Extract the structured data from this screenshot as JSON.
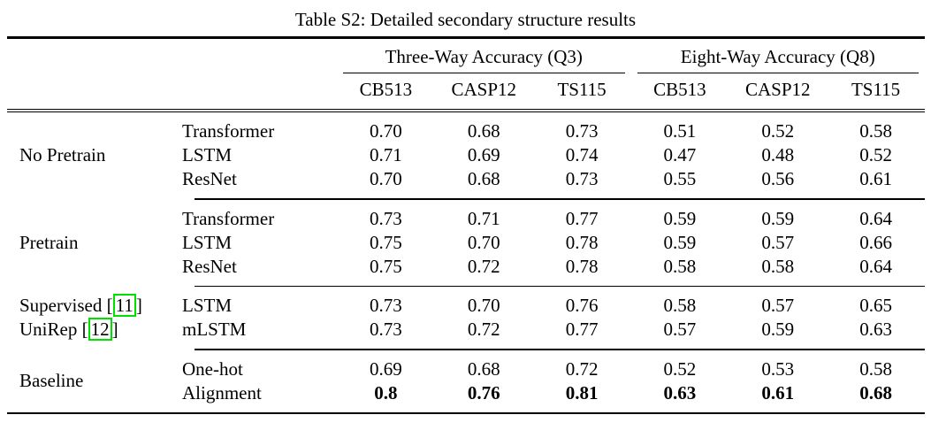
{
  "title": "Table S2: Detailed secondary structure results",
  "colors": {
    "citation_box": "#00e000"
  },
  "table": {
    "group_headers": [
      {
        "label": "Three-Way Accuracy (Q3)"
      },
      {
        "label": "Eight-Way Accuracy (Q8)"
      }
    ],
    "col_headers": [
      "CB513",
      "CASP12",
      "TS115",
      "CB513",
      "CASP12",
      "TS115"
    ],
    "sections": [
      {
        "group": "No Pretrain",
        "rows": [
          {
            "method": "Transformer",
            "values": [
              "0.70",
              "0.68",
              "0.73",
              "0.51",
              "0.52",
              "0.58"
            ]
          },
          {
            "method": "LSTM",
            "values": [
              "0.71",
              "0.69",
              "0.74",
              "0.47",
              "0.48",
              "0.52"
            ]
          },
          {
            "method": "ResNet",
            "values": [
              "0.70",
              "0.68",
              "0.73",
              "0.55",
              "0.56",
              "0.61"
            ]
          }
        ]
      },
      {
        "group": "Pretrain",
        "rows": [
          {
            "method": "Transformer",
            "values": [
              "0.73",
              "0.71",
              "0.77",
              "0.59",
              "0.59",
              "0.64"
            ]
          },
          {
            "method": "LSTM",
            "values": [
              "0.75",
              "0.70",
              "0.78",
              "0.59",
              "0.57",
              "0.66"
            ]
          },
          {
            "method": "ResNet",
            "values": [
              "0.75",
              "0.72",
              "0.78",
              "0.58",
              "0.58",
              "0.64"
            ]
          }
        ]
      },
      {
        "group_lines": [
          {
            "prefix": "Supervised [",
            "cite": "11",
            "suffix": "]"
          },
          {
            "prefix": "UniRep [",
            "cite": "12",
            "suffix": "]"
          }
        ],
        "rows": [
          {
            "method": "LSTM",
            "values": [
              "0.73",
              "0.70",
              "0.76",
              "0.58",
              "0.57",
              "0.65"
            ]
          },
          {
            "method": "mLSTM",
            "values": [
              "0.73",
              "0.72",
              "0.77",
              "0.57",
              "0.59",
              "0.63"
            ]
          }
        ]
      },
      {
        "group": "Baseline",
        "rows": [
          {
            "method": "One-hot",
            "values": [
              "0.69",
              "0.68",
              "0.72",
              "0.52",
              "0.53",
              "0.58"
            ]
          },
          {
            "method": "Alignment",
            "values": [
              "0.8",
              "0.76",
              "0.81",
              "0.63",
              "0.61",
              "0.68"
            ]
          }
        ]
      }
    ]
  }
}
